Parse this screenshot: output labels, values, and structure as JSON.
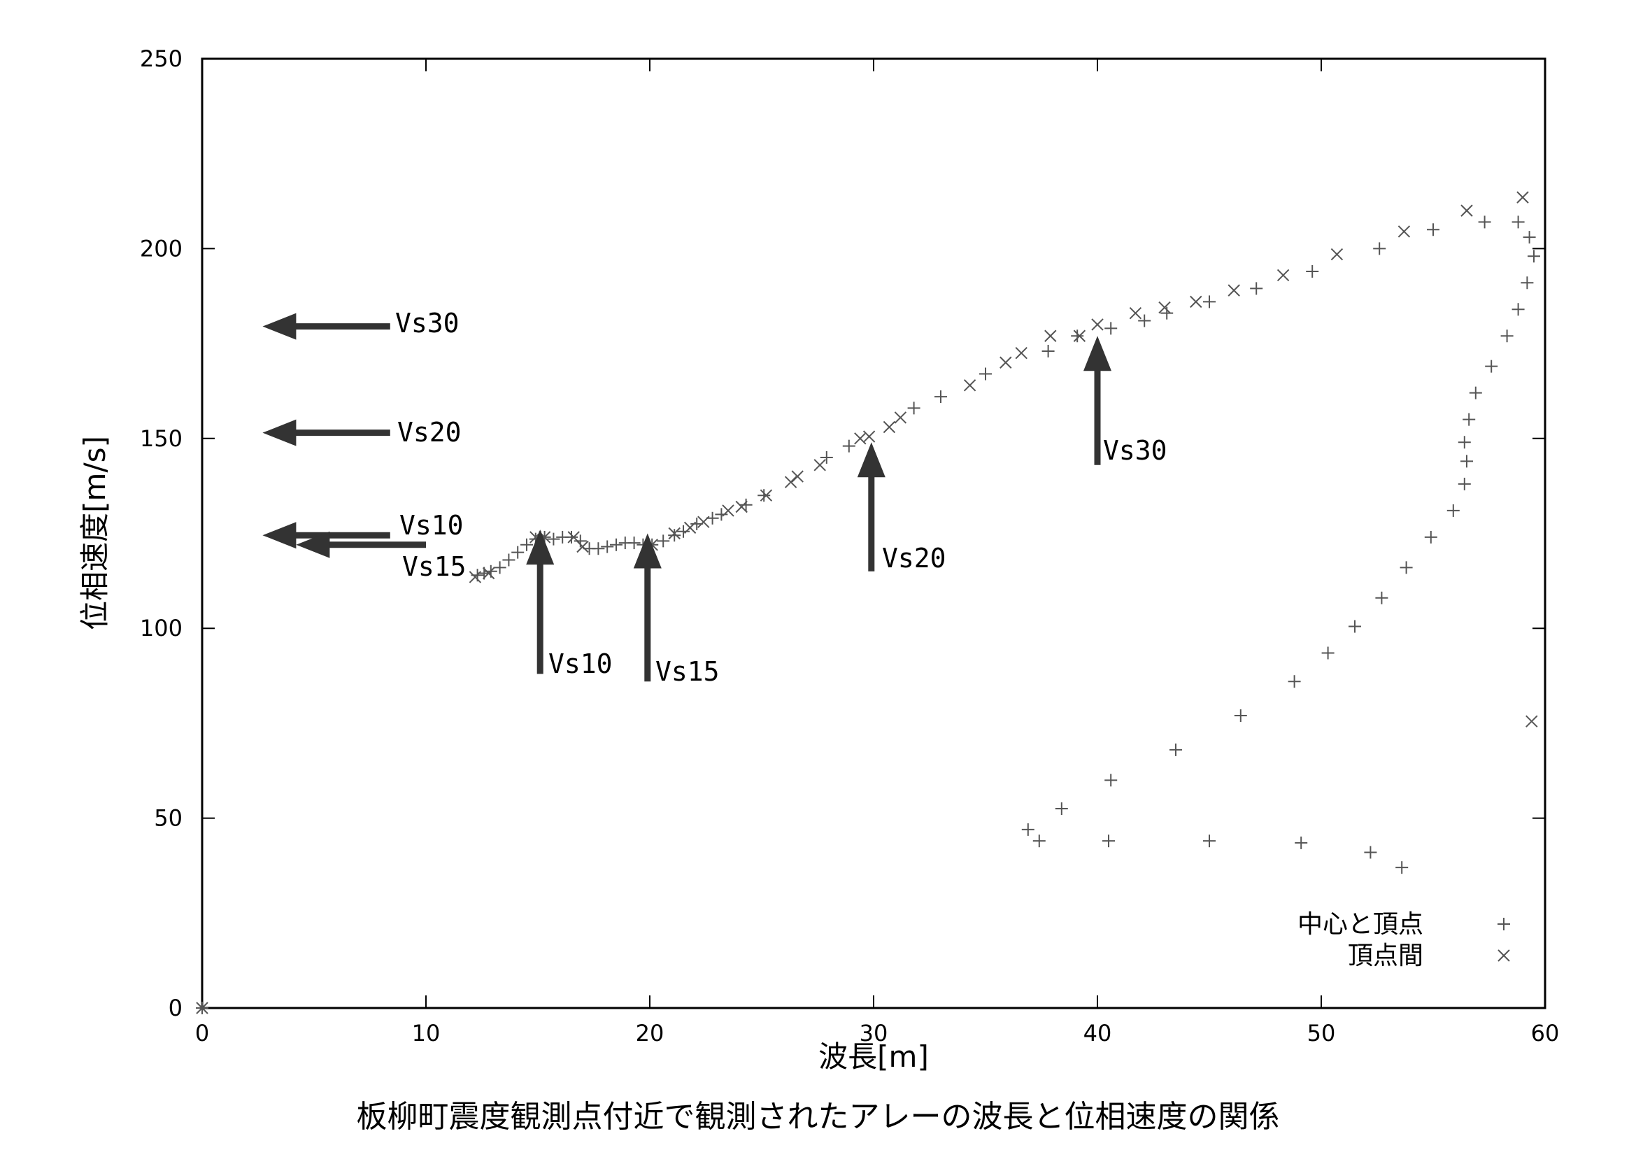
{
  "caption": "板柳町震度観測点付近で観測されたアレーの波長と位相速度の関係",
  "chart_data": {
    "type": "scatter",
    "title": "",
    "xlabel": "波長[m]",
    "ylabel": "位相速度[m/s]",
    "xlim": [
      0,
      60
    ],
    "ylim": [
      0,
      250
    ],
    "xticks": [
      0,
      10,
      20,
      30,
      40,
      50,
      60
    ],
    "yticks": [
      0,
      50,
      100,
      150,
      200,
      250
    ],
    "grid": false,
    "legend": "bottom-right",
    "series": [
      {
        "name": "中心と頂点",
        "marker": "plus",
        "color": "#555555",
        "points": [
          [
            12.3,
            114
          ],
          [
            12.6,
            114.5
          ],
          [
            12.9,
            115
          ],
          [
            13.3,
            116
          ],
          [
            13.7,
            118
          ],
          [
            14.1,
            120
          ],
          [
            14.5,
            122
          ],
          [
            14.9,
            123.5
          ],
          [
            15.3,
            124
          ],
          [
            15.7,
            123.5
          ],
          [
            16.1,
            124
          ],
          [
            16.5,
            124
          ],
          [
            16.9,
            123
          ],
          [
            17.3,
            121
          ],
          [
            17.7,
            121
          ],
          [
            18.1,
            121.5
          ],
          [
            18.5,
            122
          ],
          [
            18.9,
            122.5
          ],
          [
            19.3,
            122.5
          ],
          [
            19.7,
            122
          ],
          [
            20.1,
            122
          ],
          [
            20.6,
            123
          ],
          [
            21.1,
            124.5
          ],
          [
            21.5,
            125.5
          ],
          [
            22.1,
            127.5
          ],
          [
            22.8,
            129
          ],
          [
            23.2,
            130
          ],
          [
            24.3,
            132.5
          ],
          [
            25.1,
            135
          ],
          [
            27.9,
            145
          ],
          [
            28.9,
            148
          ],
          [
            31.8,
            158
          ],
          [
            33.0,
            161
          ],
          [
            35.0,
            167
          ],
          [
            37.8,
            173
          ],
          [
            39.1,
            177
          ],
          [
            40.6,
            179
          ],
          [
            42.1,
            181
          ],
          [
            43.1,
            183
          ],
          [
            45.0,
            186
          ],
          [
            47.1,
            189.5
          ],
          [
            49.6,
            194
          ],
          [
            52.6,
            200
          ],
          [
            55.0,
            205
          ],
          [
            57.3,
            207
          ],
          [
            58.8,
            207
          ],
          [
            59.3,
            203
          ],
          [
            59.5,
            198
          ],
          [
            59.2,
            191
          ],
          [
            58.8,
            184
          ],
          [
            58.3,
            177
          ],
          [
            57.6,
            169
          ],
          [
            56.9,
            162
          ],
          [
            56.6,
            155
          ],
          [
            56.4,
            149
          ],
          [
            56.5,
            144
          ],
          [
            56.4,
            138
          ],
          [
            55.9,
            131
          ],
          [
            54.9,
            124
          ],
          [
            53.8,
            116
          ],
          [
            52.7,
            108
          ],
          [
            51.5,
            100.5
          ],
          [
            50.3,
            93.5
          ],
          [
            48.8,
            86
          ],
          [
            46.4,
            77
          ],
          [
            43.5,
            68
          ],
          [
            40.6,
            60
          ],
          [
            38.4,
            52.5
          ],
          [
            36.9,
            47
          ],
          [
            37.4,
            44
          ],
          [
            40.5,
            44
          ],
          [
            45.0,
            44
          ],
          [
            49.1,
            43.5
          ],
          [
            52.2,
            41
          ],
          [
            53.6,
            37
          ],
          [
            0,
            0
          ]
        ]
      },
      {
        "name": "頂点間",
        "marker": "cross",
        "color": "#555555",
        "points": [
          [
            0,
            0
          ],
          [
            12.2,
            113.5
          ],
          [
            12.8,
            114.5
          ],
          [
            14.9,
            124
          ],
          [
            15.3,
            124
          ],
          [
            16.6,
            124
          ],
          [
            17.0,
            121.5
          ],
          [
            20.1,
            122
          ],
          [
            21.1,
            125
          ],
          [
            21.8,
            126.5
          ],
          [
            22.4,
            128
          ],
          [
            23.5,
            131
          ],
          [
            24.1,
            132
          ],
          [
            25.2,
            135
          ],
          [
            26.3,
            138.5
          ],
          [
            26.6,
            140
          ],
          [
            27.6,
            143
          ],
          [
            29.4,
            150
          ],
          [
            29.8,
            150.5
          ],
          [
            30.7,
            153
          ],
          [
            31.2,
            155.5
          ],
          [
            34.3,
            164
          ],
          [
            35.9,
            170
          ],
          [
            36.6,
            172.5
          ],
          [
            37.9,
            177
          ],
          [
            39.2,
            177
          ],
          [
            40.0,
            180
          ],
          [
            41.7,
            183
          ],
          [
            43.0,
            184.5
          ],
          [
            44.4,
            186
          ],
          [
            46.1,
            189
          ],
          [
            48.3,
            193
          ],
          [
            50.7,
            198.5
          ],
          [
            53.7,
            204.5
          ],
          [
            56.5,
            210
          ],
          [
            59.0,
            213.5
          ],
          [
            59.4,
            75.5
          ]
        ]
      }
    ],
    "annotations": [
      {
        "label": "Vs30",
        "direction": "left",
        "y": 179.5,
        "x_from": 8.4,
        "x_to": 2.7
      },
      {
        "label": "Vs20",
        "direction": "left",
        "y": 151.5,
        "x_from": 8.4,
        "x_to": 2.7
      },
      {
        "label": "Vs10",
        "direction": "left",
        "y": 124.5,
        "x_from": 8.4,
        "x_to": 2.7
      },
      {
        "label": "Vs15",
        "direction": "left",
        "y": 122,
        "x_from": 10.0,
        "x_to": 4.2
      },
      {
        "label": "Vs10",
        "direction": "up",
        "x": 15.1,
        "y_from": 88,
        "y_to": 126
      },
      {
        "label": "Vs15",
        "direction": "up",
        "x": 19.9,
        "y_from": 86,
        "y_to": 125
      },
      {
        "label": "Vs20",
        "direction": "up",
        "x": 29.9,
        "y_from": 115,
        "y_to": 149
      },
      {
        "label": "Vs30",
        "direction": "up",
        "x": 40.0,
        "y_from": 143,
        "y_to": 177
      }
    ]
  }
}
